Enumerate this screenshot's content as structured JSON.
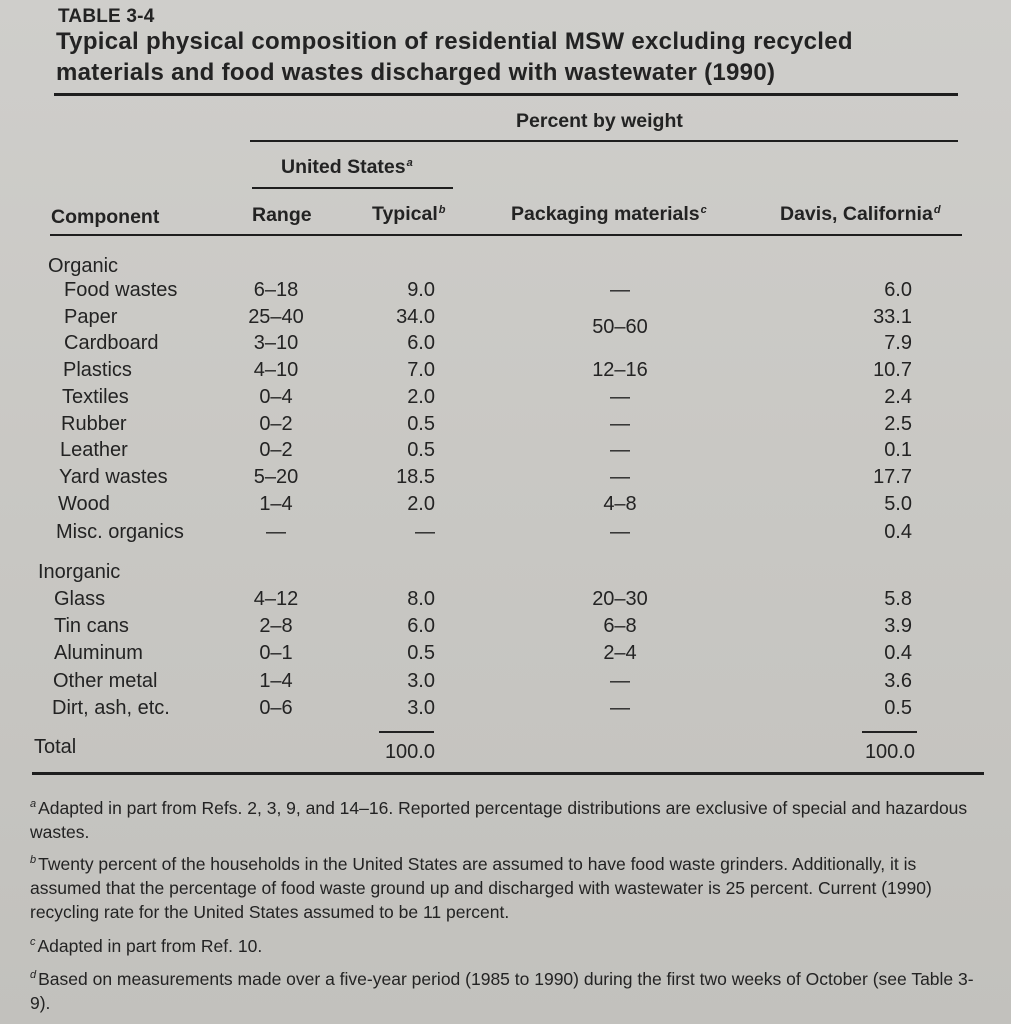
{
  "table": {
    "label": "TABLE 3-4",
    "title_line1": "Typical physical composition of residential MSW excluding recycled",
    "title_line2": "materials and food wastes discharged with wastewater (1990)"
  },
  "headers": {
    "percent_by_weight": "Percent by weight",
    "united_states": "United States",
    "united_states_sup": "a",
    "component": "Component",
    "range": "Range",
    "typical": "Typical",
    "typical_sup": "b",
    "packaging": "Packaging materials",
    "packaging_sup": "c",
    "davis": "Davis, California",
    "davis_sup": "d"
  },
  "groups": {
    "organic": "Organic",
    "inorganic": "Inorganic"
  },
  "rows": [
    {
      "component": "Food wastes",
      "range": "6–18",
      "typical": "9.0",
      "packaging": "—",
      "davis": "6.0"
    },
    {
      "component": "Paper",
      "range": "25–40",
      "typical": "34.0",
      "packaging": "",
      "davis": "33.1"
    },
    {
      "component": "Cardboard",
      "range": "3–10",
      "typical": "6.0",
      "packaging": "",
      "davis": "7.9"
    },
    {
      "component": "Plastics",
      "range": "4–10",
      "typical": "7.0",
      "packaging": "12–16",
      "davis": "10.7"
    },
    {
      "component": "Textiles",
      "range": "0–4",
      "typical": "2.0",
      "packaging": "—",
      "davis": "2.4"
    },
    {
      "component": "Rubber",
      "range": "0–2",
      "typical": "0.5",
      "packaging": "—",
      "davis": "2.5"
    },
    {
      "component": "Leather",
      "range": "0–2",
      "typical": "0.5",
      "packaging": "—",
      "davis": "0.1"
    },
    {
      "component": "Yard wastes",
      "range": "5–20",
      "typical": "18.5",
      "packaging": "—",
      "davis": "17.7"
    },
    {
      "component": "Wood",
      "range": "1–4",
      "typical": "2.0",
      "packaging": "4–8",
      "davis": "5.0"
    },
    {
      "component": "Misc. organics",
      "range": "—",
      "typical": "—",
      "packaging": "—",
      "davis": "0.4"
    },
    {
      "component": "Glass",
      "range": "4–12",
      "typical": "8.0",
      "packaging": "20–30",
      "davis": "5.8"
    },
    {
      "component": "Tin cans",
      "range": "2–8",
      "typical": "6.0",
      "packaging": "6–8",
      "davis": "3.9"
    },
    {
      "component": "Aluminum",
      "range": "0–1",
      "typical": "0.5",
      "packaging": "2–4",
      "davis": "0.4"
    },
    {
      "component": "Other metal",
      "range": "1–4",
      "typical": "3.0",
      "packaging": "—",
      "davis": "3.6"
    },
    {
      "component": "Dirt, ash, etc.",
      "range": "0–6",
      "typical": "3.0",
      "packaging": "—",
      "davis": "0.5"
    }
  ],
  "paper_cardboard_packaging": "50–60",
  "total": {
    "label": "Total",
    "typical": "100.0",
    "davis": "100.0"
  },
  "footnotes": [
    {
      "mark": "a",
      "text": "Adapted in part from Refs. 2, 3, 9, and 14–16. Reported percentage distributions are exclusive of special and hazardous wastes."
    },
    {
      "mark": "b",
      "text": "Twenty percent of the households in the United States are assumed to have food waste grinders. Additionally, it is assumed that the percentage of food waste ground up and discharged with wastewater is 25 percent. Current (1990) recycling rate for the United States assumed to be 11 percent."
    },
    {
      "mark": "c",
      "text": "Adapted in part from Ref. 10."
    },
    {
      "mark": "d",
      "text": "Based on measurements made over a five-year period (1985 to 1990) during the first two weeks of October (see Table 3-9)."
    }
  ]
}
